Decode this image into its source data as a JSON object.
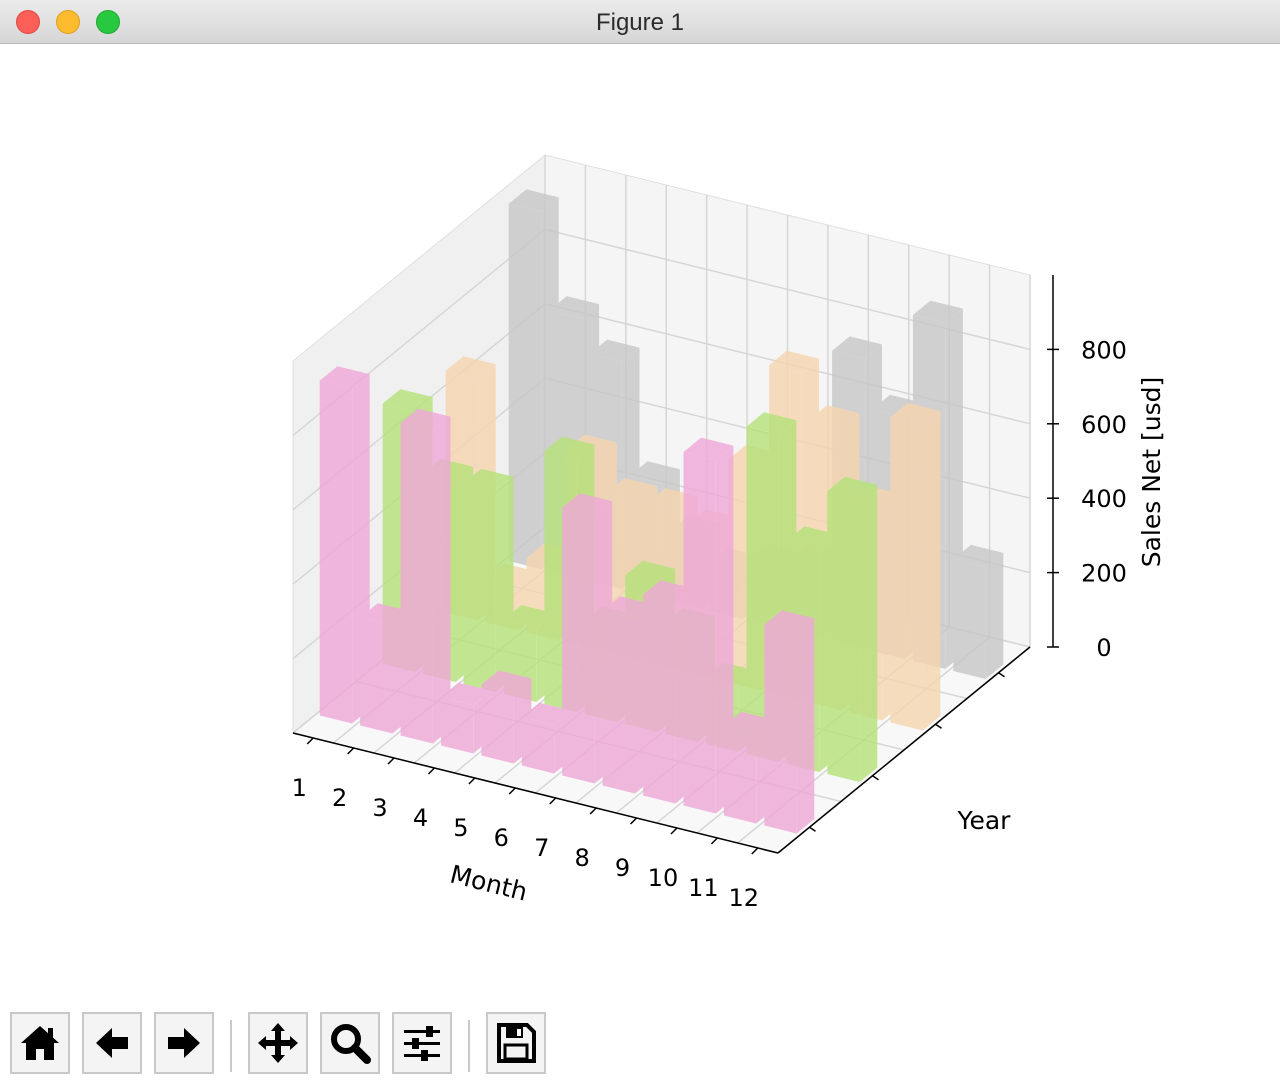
{
  "window": {
    "title": "Figure 1"
  },
  "toolbar": {
    "buttons": [
      {
        "icon": "home-icon"
      },
      {
        "icon": "back-arrow-icon"
      },
      {
        "icon": "forward-arrow-icon"
      },
      {
        "icon": "pan-icon"
      },
      {
        "icon": "zoom-icon"
      },
      {
        "icon": "configure-subplots-icon"
      },
      {
        "icon": "save-icon"
      }
    ]
  },
  "chart_data": {
    "type": "bar3d",
    "xlabel": "Month",
    "ylabel": "Year",
    "zlabel": "Sales Net [usd]",
    "categories": [
      "1",
      "2",
      "3",
      "4",
      "5",
      "6",
      "7",
      "8",
      "9",
      "10",
      "11",
      "12"
    ],
    "zticks": [
      "0",
      "200",
      "400",
      "600",
      "800"
    ],
    "zlim": [
      0,
      1000
    ],
    "grid": true,
    "series": [
      {
        "color": "#c8c8c8",
        "values": [
          960,
          700,
          610,
          310,
          190,
          130,
          170,
          200,
          780,
          650,
          930,
          300
        ]
      },
      {
        "color": "#f5d6b0",
        "values": [
          650,
          120,
          200,
          520,
          430,
          430,
          400,
          600,
          880,
          760,
          570,
          820
        ]
      },
      {
        "color": "#b6e27a",
        "values": [
          700,
          540,
          540,
          200,
          680,
          250,
          400,
          300,
          180,
          880,
          600,
          760
        ]
      },
      {
        "color": "#efa9d8",
        "values": [
          900,
          290,
          840,
          130,
          190,
          130,
          720,
          470,
          540,
          950,
          240,
          540
        ]
      }
    ]
  }
}
